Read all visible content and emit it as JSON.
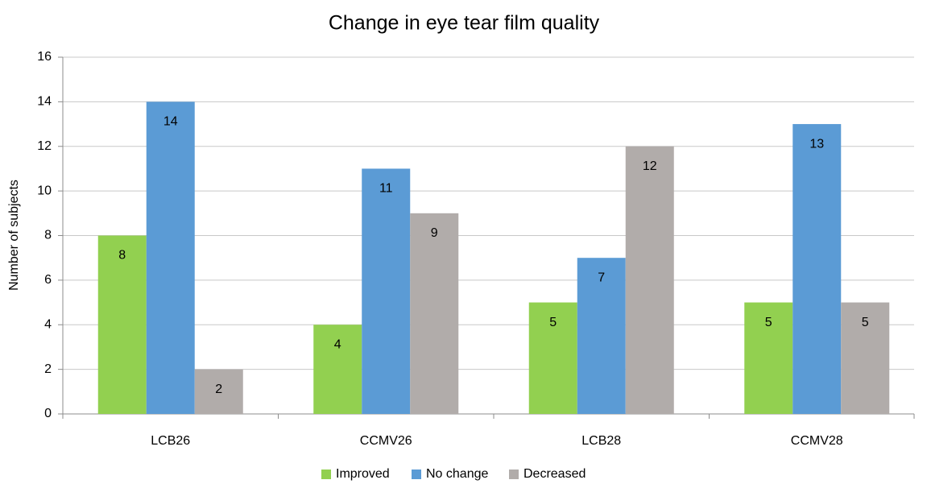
{
  "chart_data": {
    "type": "bar",
    "title": "Change in eye tear film quality",
    "y_label": "Number of subjects",
    "categories": [
      "LCB26",
      "CCMV26",
      "LCB28",
      "CCMV28"
    ],
    "series": [
      {
        "name": "Improved",
        "color": "#92d050",
        "values": [
          8,
          4,
          5,
          5
        ]
      },
      {
        "name": "No change",
        "color": "#5b9bd5",
        "values": [
          14,
          11,
          7,
          13
        ]
      },
      {
        "name": "Decreased",
        "color": "#b1acaa",
        "values": [
          2,
          9,
          12,
          5
        ]
      }
    ],
    "ylim": [
      0,
      16
    ],
    "yticks": [
      0,
      2,
      4,
      6,
      8,
      10,
      12,
      14,
      16
    ],
    "grid": true,
    "legend": "bottom"
  }
}
